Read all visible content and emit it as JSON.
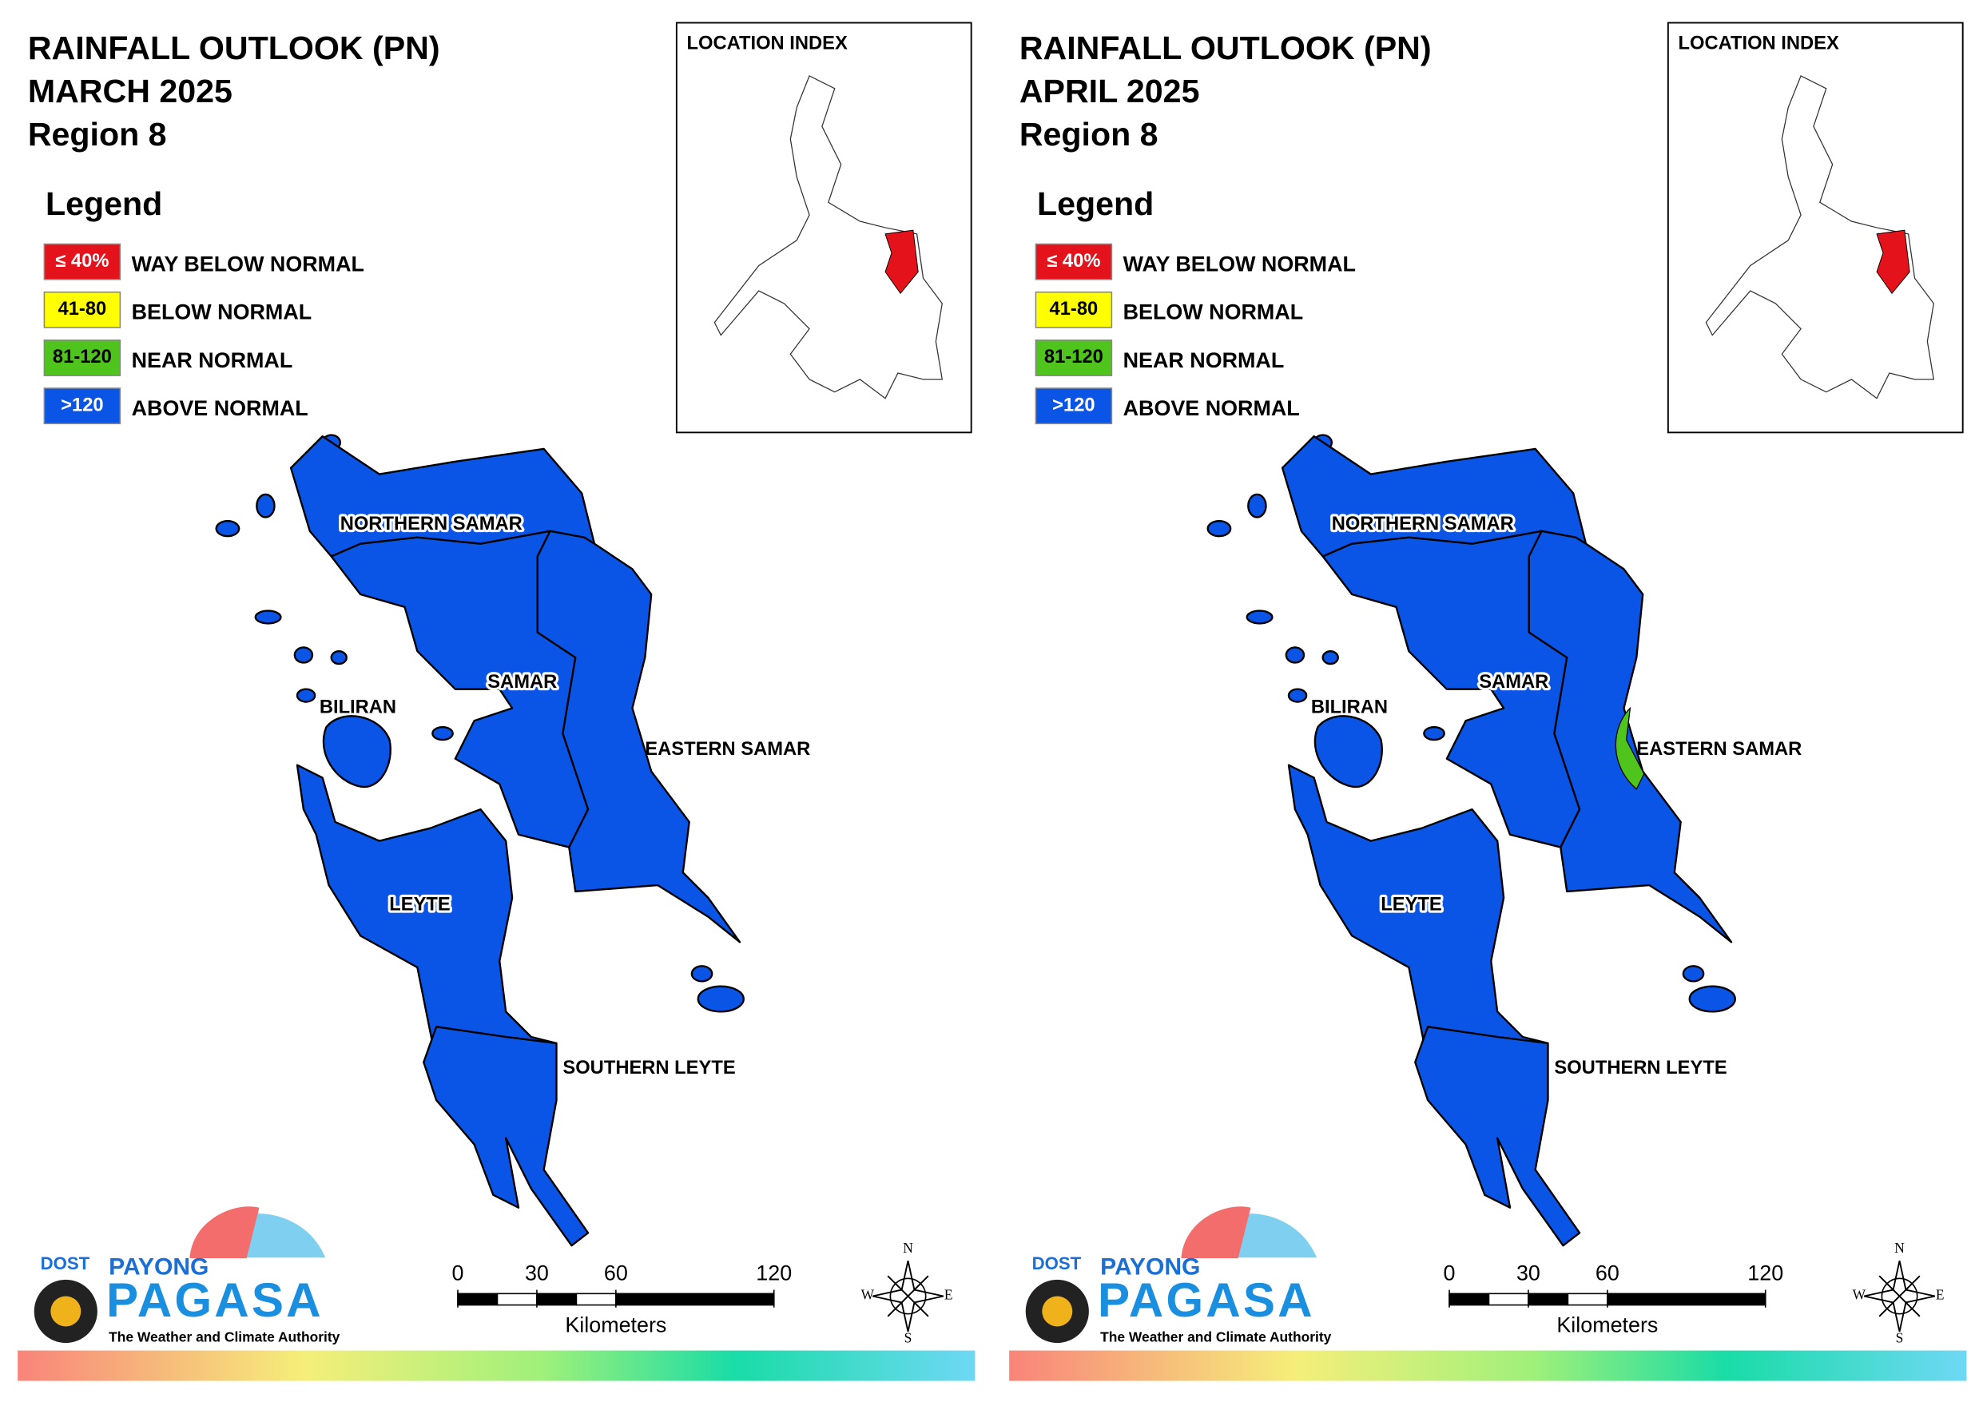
{
  "panels": [
    {
      "title": [
        "RAINFALL OUTLOOK (PN)",
        "MARCH 2025",
        "Region 8"
      ],
      "legend": {
        "title": "Legend",
        "items": [
          {
            "key": "≤ 40%",
            "label": "WAY BELOW NORMAL",
            "color": "#e3121b"
          },
          {
            "key": "41-80",
            "label": "BELOW NORMAL",
            "color": "#ffff00"
          },
          {
            "key": "81-120",
            "label": "NEAR NORMAL",
            "color": "#4fc41c"
          },
          {
            "key": ">120",
            "label": "ABOVE NORMAL",
            "color": "#0a55e6"
          }
        ]
      },
      "inset_title": "LOCATION INDEX",
      "provinces": [
        {
          "name": "NORTHERN SAMAR",
          "category": "ABOVE NORMAL"
        },
        {
          "name": "SAMAR",
          "category": "ABOVE NORMAL"
        },
        {
          "name": "EASTERN SAMAR",
          "category": "ABOVE NORMAL"
        },
        {
          "name": "BILIRAN",
          "category": "ABOVE NORMAL"
        },
        {
          "name": "LEYTE",
          "category": "ABOVE NORMAL"
        },
        {
          "name": "SOUTHERN LEYTE",
          "category": "ABOVE NORMAL"
        }
      ],
      "zones": [],
      "scale": {
        "ticks": [
          0,
          30,
          60,
          120
        ],
        "unit": "Kilometers"
      },
      "compass": [
        "N",
        "E",
        "S",
        "W"
      ],
      "logo": {
        "org": "DOST",
        "brand": [
          "PAYONG",
          "PAGASA"
        ],
        "tagline": "The Weather and Climate Authority"
      }
    },
    {
      "title": [
        "RAINFALL OUTLOOK (PN)",
        "APRIL 2025",
        "Region 8"
      ],
      "legend": {
        "title": "Legend",
        "items": [
          {
            "key": "≤ 40%",
            "label": "WAY BELOW NORMAL",
            "color": "#e3121b"
          },
          {
            "key": "41-80",
            "label": "BELOW NORMAL",
            "color": "#ffff00"
          },
          {
            "key": "81-120",
            "label": "NEAR NORMAL",
            "color": "#4fc41c"
          },
          {
            "key": ">120",
            "label": "ABOVE NORMAL",
            "color": "#0a55e6"
          }
        ]
      },
      "inset_title": "LOCATION INDEX",
      "provinces": [
        {
          "name": "NORTHERN SAMAR",
          "category": "ABOVE NORMAL"
        },
        {
          "name": "SAMAR",
          "category": "ABOVE NORMAL"
        },
        {
          "name": "EASTERN SAMAR",
          "category": "ABOVE NORMAL"
        },
        {
          "name": "BILIRAN",
          "category": "ABOVE NORMAL"
        },
        {
          "name": "LEYTE",
          "category": "ABOVE NORMAL"
        },
        {
          "name": "SOUTHERN LEYTE",
          "category": "ABOVE NORMAL"
        }
      ],
      "zones": [
        {
          "province": "EASTERN SAMAR",
          "category": "NEAR NORMAL"
        }
      ],
      "scale": {
        "ticks": [
          0,
          30,
          60,
          120
        ],
        "unit": "Kilometers"
      },
      "compass": [
        "N",
        "E",
        "S",
        "W"
      ],
      "logo": {
        "org": "DOST",
        "brand": [
          "PAYONG",
          "PAGASA"
        ],
        "tagline": "The Weather and Climate Authority"
      }
    }
  ]
}
